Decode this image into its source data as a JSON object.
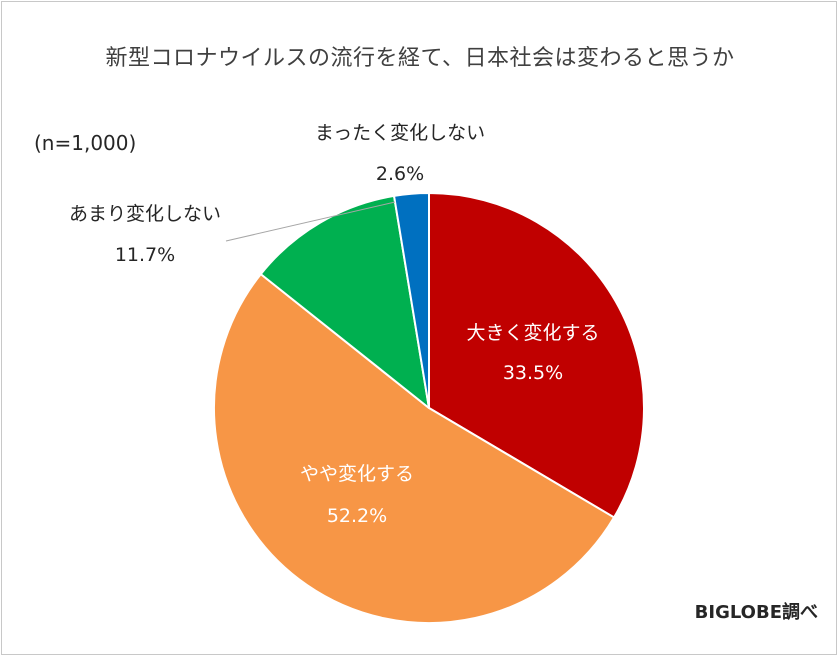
{
  "header": {
    "title": "新型コロナウイルスの流行を経て、日本社会は変わると思うか"
  },
  "note": "(n=1,000)",
  "credit": "BIGLOBE調べ",
  "chart_data": {
    "type": "pie",
    "title": "新型コロナウイルスの流行を経て、日本社会は変わると思うか",
    "slices": [
      {
        "label": "大きく変化する",
        "value": 33.5,
        "value_text": "33.5%",
        "color": "#C00000"
      },
      {
        "label": "やや変化する",
        "value": 52.2,
        "value_text": "52.2%",
        "color": "#F79646"
      },
      {
        "label": "あまり変化しない",
        "value": 11.7,
        "value_text": "11.7%",
        "color": "#00B050"
      },
      {
        "label": "まったく変化しない",
        "value": 2.6,
        "value_text": "2.6%",
        "color": "#0070C0"
      }
    ]
  }
}
